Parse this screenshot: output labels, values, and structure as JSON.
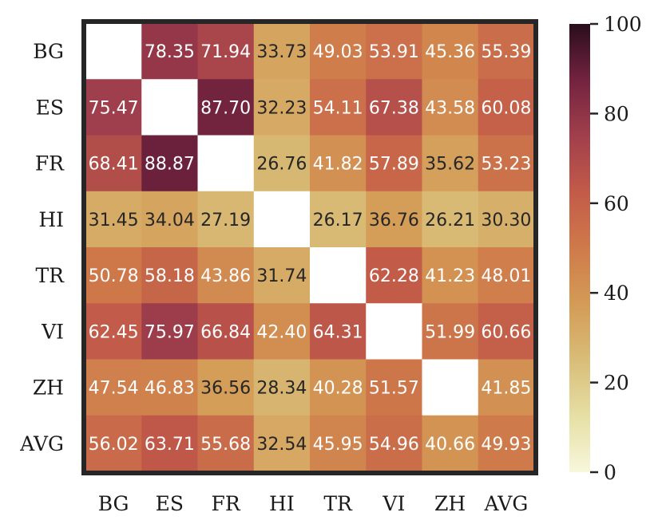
{
  "chart_data": {
    "type": "heatmap",
    "rows": [
      "BG",
      "ES",
      "FR",
      "HI",
      "TR",
      "VI",
      "ZH",
      "AVG"
    ],
    "columns": [
      "BG",
      "ES",
      "FR",
      "HI",
      "TR",
      "VI",
      "ZH",
      "AVG"
    ],
    "values": [
      [
        null,
        78.35,
        71.94,
        33.73,
        49.03,
        53.91,
        45.36,
        55.39
      ],
      [
        75.47,
        null,
        87.7,
        32.23,
        54.11,
        67.38,
        43.58,
        60.08
      ],
      [
        68.41,
        88.87,
        null,
        26.76,
        41.82,
        57.89,
        35.62,
        53.23
      ],
      [
        31.45,
        34.04,
        27.19,
        null,
        26.17,
        36.76,
        26.21,
        30.3
      ],
      [
        50.78,
        58.18,
        43.86,
        31.74,
        null,
        62.28,
        41.23,
        48.01
      ],
      [
        62.45,
        75.97,
        66.84,
        42.4,
        64.31,
        null,
        51.99,
        60.66
      ],
      [
        47.54,
        46.83,
        36.56,
        28.34,
        40.28,
        51.57,
        null,
        41.85
      ],
      [
        56.02,
        63.71,
        55.68,
        32.54,
        45.95,
        54.96,
        40.66,
        49.93
      ]
    ],
    "value_labels": [
      [
        "",
        "78.35",
        "71.94",
        "33.73",
        "49.03",
        "53.91",
        "45.36",
        "55.39"
      ],
      [
        "75.47",
        "",
        "87.70",
        "32.23",
        "54.11",
        "67.38",
        "43.58",
        "60.08"
      ],
      [
        "68.41",
        "88.87",
        "",
        "26.76",
        "41.82",
        "57.89",
        "35.62",
        "53.23"
      ],
      [
        "31.45",
        "34.04",
        "27.19",
        "",
        "26.17",
        "36.76",
        "26.21",
        "30.30"
      ],
      [
        "50.78",
        "58.18",
        "43.86",
        "31.74",
        "",
        "62.28",
        "41.23",
        "48.01"
      ],
      [
        "62.45",
        "75.97",
        "66.84",
        "42.40",
        "64.31",
        "",
        "51.99",
        "60.66"
      ],
      [
        "47.54",
        "46.83",
        "36.56",
        "28.34",
        "40.28",
        "51.57",
        "",
        "41.85"
      ],
      [
        "56.02",
        "63.71",
        "55.68",
        "32.54",
        "45.95",
        "54.96",
        "40.66",
        "49.93"
      ]
    ],
    "colorbar": {
      "range": [
        0,
        100
      ],
      "ticks": [
        0,
        20,
        40,
        60,
        80,
        100
      ],
      "tick_labels": [
        "0",
        "20",
        "40",
        "60",
        "80",
        "100"
      ],
      "colormap": [
        "#f7f7dc",
        "#e6dfa4",
        "#d8bd78",
        "#d49b56",
        "#cf7a4a",
        "#c25b49",
        "#a13f4c",
        "#73233f",
        "#2a0d1c"
      ]
    },
    "grid": false,
    "title": "",
    "xlabel": "",
    "ylabel": ""
  }
}
